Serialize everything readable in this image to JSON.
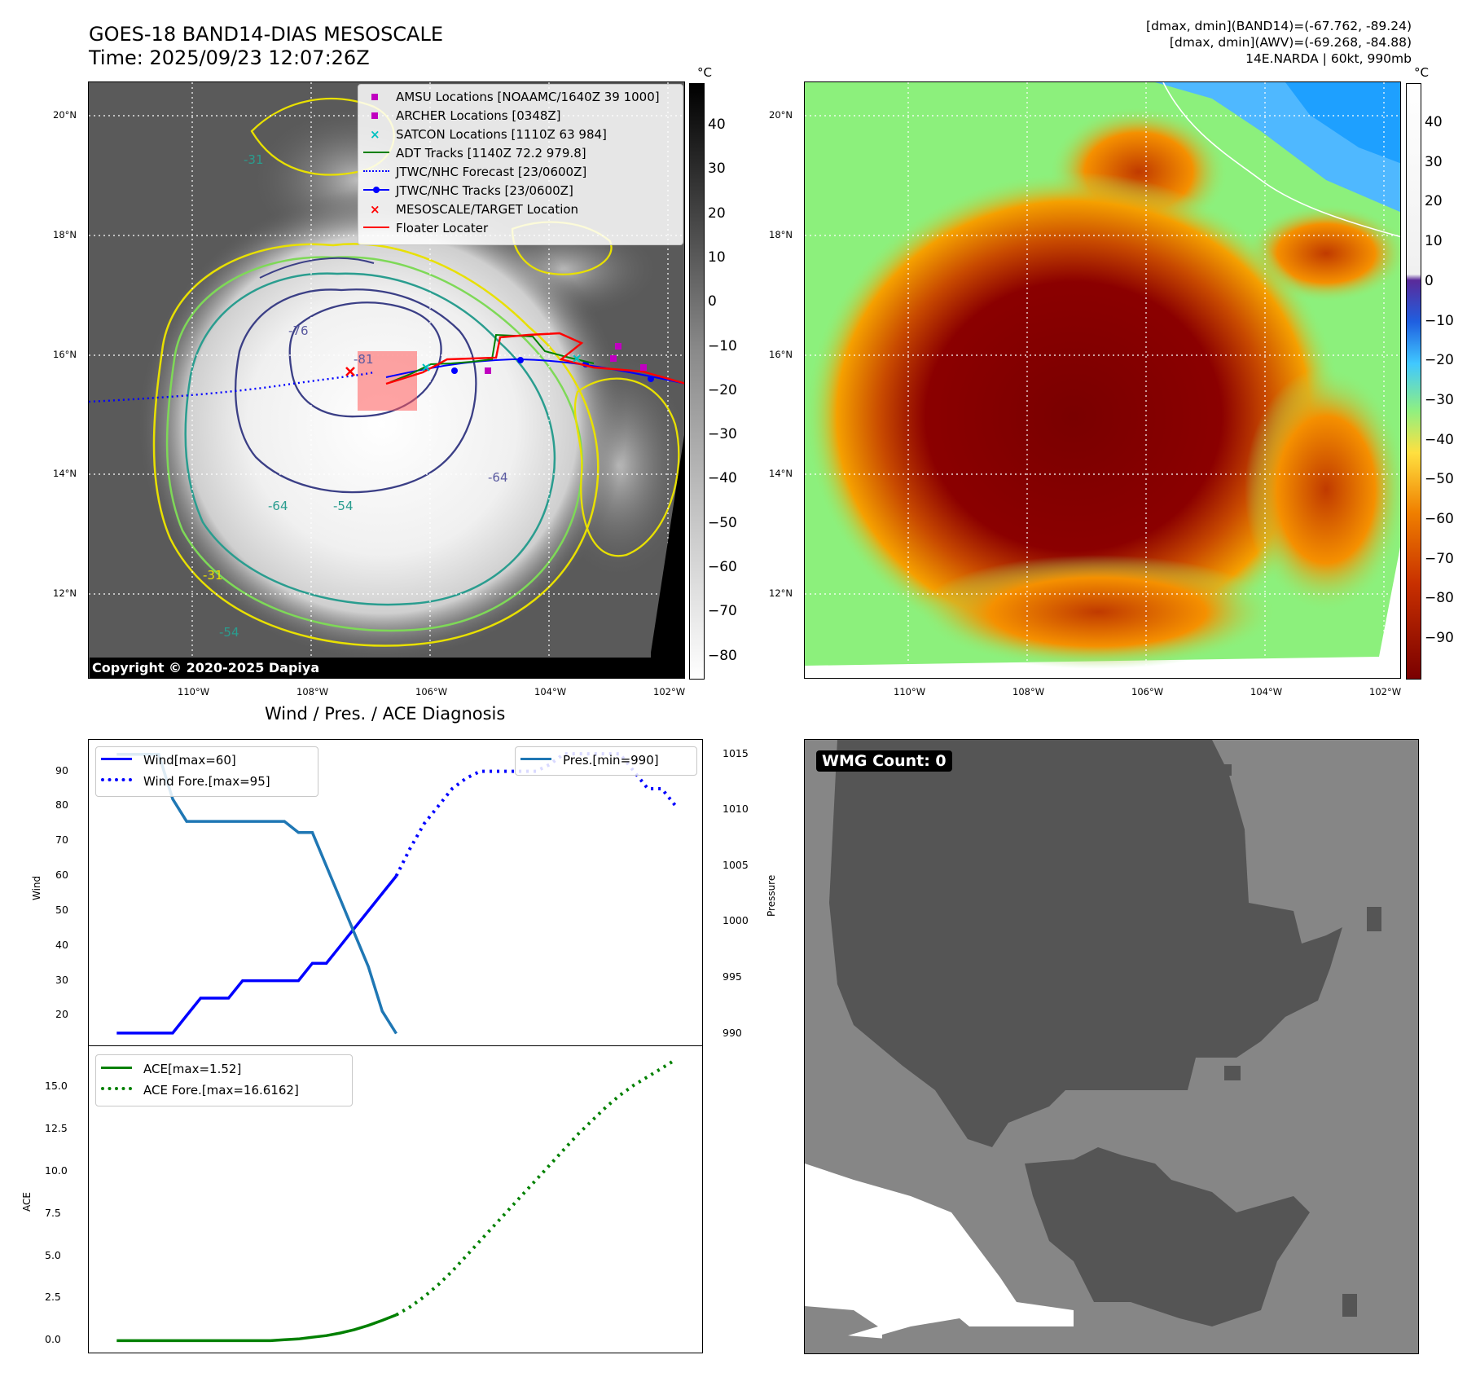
{
  "header": {
    "title_line1": "GOES-18 BAND14-DIAS MESOSCALE",
    "title_line2": "Time: 2025/09/23 12:07:26Z",
    "info_line1": "[dmax, dmin](BAND14)=(-67.762, -89.24)",
    "info_line2": "[dmax, dmin](AWV)=(-69.268, -84.88)",
    "info_line3": "14E.NARDA | 60kt, 990mb"
  },
  "map": {
    "lon_labels": [
      "110°W",
      "108°W",
      "106°W",
      "104°W",
      "102°W"
    ],
    "lat_labels": [
      "20°N",
      "18°N",
      "16°N",
      "14°N",
      "12°N"
    ],
    "copyright": "Copyright © 2020-2025 Dapiya",
    "contour_labels": [
      "-31",
      "-54",
      "-64",
      "-76",
      "-81"
    ],
    "legend": [
      {
        "label": "AMSU Locations [NOAAMC/1640Z 39 1000]",
        "color": "#c000c0",
        "marker": "square"
      },
      {
        "label": "ARCHER Locations [0348Z]",
        "color": "#c000c0",
        "marker": "square"
      },
      {
        "label": "SATCON Locations [1110Z 63 984]",
        "color": "#00c0c0",
        "marker": "x"
      },
      {
        "label": "ADT Tracks [1140Z 72.2 979.8]",
        "color": "#008000",
        "marker": "line"
      },
      {
        "label": "JTWC/NHC Forecast [23/0600Z]",
        "color": "#0000ff",
        "marker": "dotted"
      },
      {
        "label": "JTWC/NHC Tracks [23/0600Z]",
        "color": "#0000ff",
        "marker": "line-dot"
      },
      {
        "label": "MESOSCALE/TARGET Location",
        "color": "#ff0000",
        "marker": "x"
      },
      {
        "label": "Floater Locater",
        "color": "#ff0000",
        "marker": "line"
      }
    ]
  },
  "colorbar_gray": {
    "unit": "°C",
    "ticks": [
      "40",
      "30",
      "20",
      "10",
      "0",
      "−10",
      "−20",
      "−30",
      "−40",
      "−50",
      "−60",
      "−70",
      "−80"
    ]
  },
  "colorbar_color": {
    "unit": "°C",
    "ticks": [
      "40",
      "30",
      "20",
      "10",
      "0",
      "−10",
      "−20",
      "−30",
      "−40",
      "−50",
      "−60",
      "−70",
      "−80",
      "−90"
    ]
  },
  "diagnosis": {
    "title": "Wind / Pres. / ACE Diagnosis",
    "wmg_label": "WMG Count: 0"
  },
  "chart_data": [
    {
      "type": "line",
      "title": "Wind / Pres. / ACE Diagnosis",
      "ylabel": "Wind",
      "y2label": "Pressure",
      "ylim": [
        11,
        99
      ],
      "y2lim": [
        988.8,
        1016.3
      ],
      "x_index_range": [
        -2,
        42
      ],
      "yticks": [
        20,
        30,
        40,
        50,
        60,
        70,
        80,
        90
      ],
      "y2ticks": [
        990,
        995,
        1000,
        1005,
        1010,
        1015
      ],
      "series": [
        {
          "name": "Wind[max=60]",
          "color": "#0000ff",
          "style": "solid",
          "axis": "left",
          "x": [
            0,
            1,
            2,
            3,
            4,
            5,
            6,
            7,
            8,
            9,
            10,
            11,
            12,
            13,
            14,
            15,
            16,
            17,
            18,
            19,
            20
          ],
          "values": [
            15,
            15,
            15,
            15,
            15,
            20,
            25,
            25,
            25,
            30,
            30,
            30,
            30,
            30,
            35,
            35,
            40,
            45,
            50,
            55,
            60
          ]
        },
        {
          "name": "Wind Fore.[max=95]",
          "color": "#0000ff",
          "style": "dotted",
          "axis": "left",
          "x": [
            20,
            21,
            22,
            23,
            24,
            25,
            26,
            27,
            28,
            29,
            30,
            31,
            32,
            33,
            34,
            35,
            36,
            37,
            38,
            39,
            40
          ],
          "values": [
            60,
            68,
            75,
            80,
            85,
            88,
            90,
            90,
            90,
            90,
            90,
            92,
            95,
            95,
            95,
            95,
            95,
            90,
            85,
            85,
            80
          ]
        },
        {
          "name": "Pres.[min=990]",
          "color": "#1f77b4",
          "style": "solid",
          "axis": "right",
          "x": [
            0,
            1,
            2,
            3,
            4,
            5,
            6,
            7,
            8,
            9,
            10,
            11,
            12,
            13,
            14,
            15,
            16,
            17,
            18,
            19,
            20
          ],
          "values": [
            1015,
            1015,
            1015,
            1015,
            1011,
            1009,
            1009,
            1009,
            1009,
            1009,
            1009,
            1009,
            1009,
            1008,
            1008,
            1005,
            1002,
            999,
            996,
            992,
            990
          ]
        }
      ]
    },
    {
      "type": "line",
      "ylabel": "ACE",
      "ylim": [
        -0.8,
        17.4
      ],
      "yticks": [
        "0.0",
        "2.5",
        "5.0",
        "7.5",
        "10.0",
        "12.5",
        "15.0"
      ],
      "series": [
        {
          "name": "ACE[max=1.52]",
          "color": "#008000",
          "style": "solid",
          "x": [
            0,
            1,
            2,
            3,
            4,
            5,
            6,
            7,
            8,
            9,
            10,
            11,
            12,
            13,
            14,
            15,
            16,
            17,
            18,
            19,
            20
          ],
          "values": [
            0,
            0,
            0,
            0,
            0,
            0,
            0,
            0,
            0,
            0,
            0,
            0,
            0.05,
            0.1,
            0.2,
            0.3,
            0.45,
            0.65,
            0.9,
            1.2,
            1.52
          ]
        },
        {
          "name": "ACE Fore.[max=16.6162]",
          "color": "#008000",
          "style": "dotted",
          "x": [
            20,
            21,
            22,
            23,
            24,
            25,
            26,
            27,
            28,
            29,
            30,
            31,
            32,
            33,
            34,
            35,
            36,
            37,
            38,
            39,
            40
          ],
          "values": [
            1.52,
            2.0,
            2.6,
            3.3,
            4.1,
            5.0,
            5.9,
            6.8,
            7.7,
            8.6,
            9.5,
            10.4,
            11.3,
            12.2,
            13.0,
            13.8,
            14.5,
            15.1,
            15.6,
            16.1,
            16.6162
          ]
        }
      ]
    }
  ]
}
